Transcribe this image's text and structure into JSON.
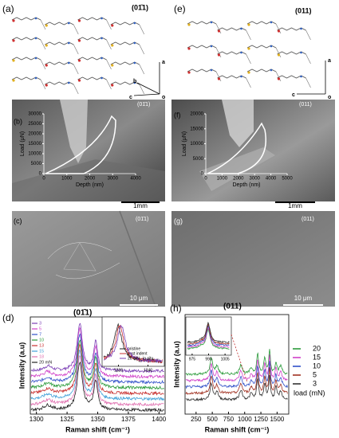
{
  "panels": {
    "a": {
      "label": "(a)",
      "plane": "(01̄1)",
      "axes": [
        "a",
        "b",
        "c",
        "o"
      ]
    },
    "e": {
      "label": "(e)",
      "plane": "(011)",
      "axes": [
        "a",
        "c",
        "o"
      ]
    },
    "b": {
      "label": "(b)",
      "plane": "(01̄1)",
      "xlabel": "Depth (nm)",
      "ylabel": "Load (μN)",
      "xlim": [
        0,
        4000
      ],
      "xticks": [
        0,
        1000,
        2000,
        3000,
        4000
      ],
      "ylim": [
        0,
        30000
      ],
      "yticks": [
        0,
        5000,
        10000,
        15000,
        20000,
        25000,
        30000
      ],
      "scale": "1mm"
    },
    "f": {
      "label": "(f)",
      "plane": "(011)",
      "xlabel": "Depth (nm)",
      "ylabel": "Load (μN)",
      "xlim": [
        0,
        5000
      ],
      "xticks": [
        0,
        1000,
        2000,
        3000,
        4000,
        5000
      ],
      "ylim": [
        0,
        20000
      ],
      "yticks": [
        0,
        5000,
        10000,
        15000,
        20000
      ],
      "scale": "1mm"
    },
    "c": {
      "label": "(c)",
      "plane": "(01̄1)",
      "scale": "10 μm"
    },
    "g": {
      "label": "(g)",
      "plane": "(011)",
      "scale": "10 μm"
    },
    "d": {
      "label": "(d)",
      "plane": "(01̄1)",
      "xlabel": "Raman shift (cm⁻¹)",
      "ylabel": "Intensity (a.u)",
      "xlim": [
        1295,
        1405
      ],
      "xticks": [
        1300,
        1325,
        1350,
        1375,
        1400
      ],
      "legend": [
        {
          "name": "3",
          "color": "#7b3fb5"
        },
        {
          "name": "5",
          "color": "#d040c8"
        },
        {
          "name": "7",
          "color": "#3050c8"
        },
        {
          "name": "10",
          "color": "#2a9a3a"
        },
        {
          "name": "13",
          "color": "#c83030"
        },
        {
          "name": "15",
          "color": "#40a0d8"
        },
        {
          "name": "18",
          "color": "#e070b0"
        },
        {
          "name": "20 mN",
          "color": "#222222"
        }
      ],
      "inset": {
        "xlim": [
          1310,
          1350
        ],
        "xticks": [
          1320,
          1340
        ],
        "legend": [
          {
            "name": "pristine",
            "color": "#222222"
          },
          {
            "name": "post indent",
            "color": "#c83030"
          },
          {
            "name": "20 mN - in situ",
            "color": "#7b3fb5"
          }
        ]
      }
    },
    "h": {
      "label": "(h)",
      "plane": "(011)",
      "xlabel": "Raman shift (cm⁻¹)",
      "ylabel": "Intensity (a.u)",
      "xlim": [
        80,
        1680
      ],
      "xticks": [
        250,
        500,
        750,
        1000,
        1250,
        1500
      ],
      "legend": [
        {
          "name": "20",
          "color": "#2a9a3a"
        },
        {
          "name": "15",
          "color": "#d040c8"
        },
        {
          "name": "10",
          "color": "#3050c8"
        },
        {
          "name": "5",
          "color": "#a03020"
        },
        {
          "name": "3",
          "color": "#333333"
        }
      ],
      "legend_title": "load (mN)",
      "inset": {
        "xlim": [
          970,
          1010
        ],
        "xticks": [
          975,
          990,
          1005
        ]
      }
    }
  }
}
